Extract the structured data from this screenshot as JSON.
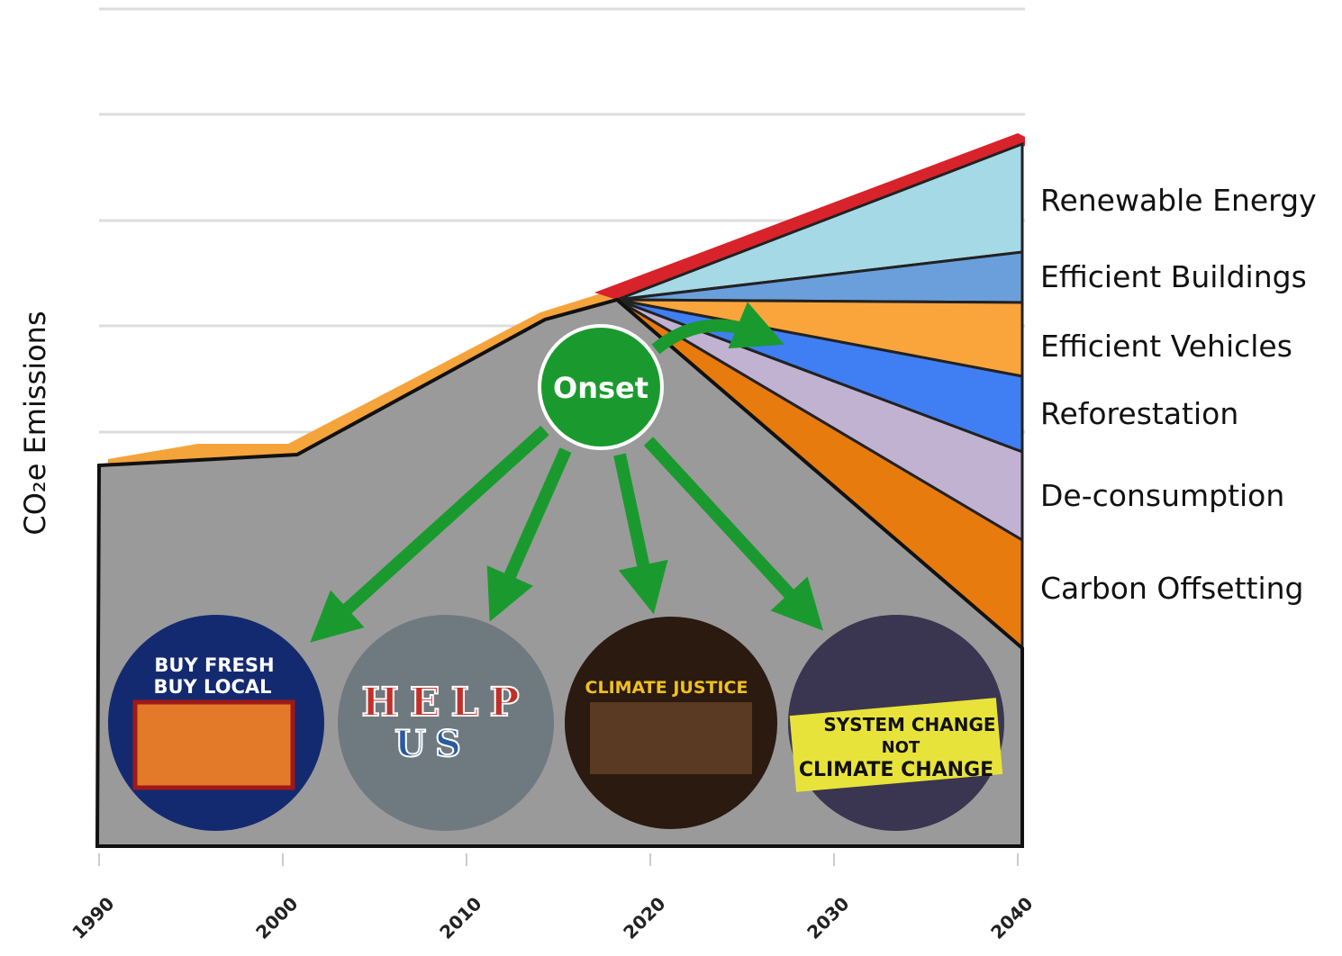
{
  "y_axis": {
    "label": "CO₂e Emissions"
  },
  "x_axis": {
    "ticks": [
      "1990",
      "2000",
      "2010",
      "2020",
      "2030",
      "2040"
    ]
  },
  "wedges": [
    "Renewable Energy",
    "Efficient Buildings",
    "Efficient Vehicles",
    "Reforestation",
    "De-consumption",
    "Carbon Offsetting"
  ],
  "onset": "Onset",
  "images": [
    {
      "lines": [
        "BUY FRESH",
        "BUY LOCAL"
      ]
    },
    {
      "lines": [
        "HELP",
        "US"
      ]
    },
    {
      "lines": [
        "CLIMATE JUSTICE"
      ]
    },
    {
      "lines": [
        "SYSTEM CHANGE",
        "NOT",
        "CLIMATE CHANGE"
      ]
    }
  ]
}
